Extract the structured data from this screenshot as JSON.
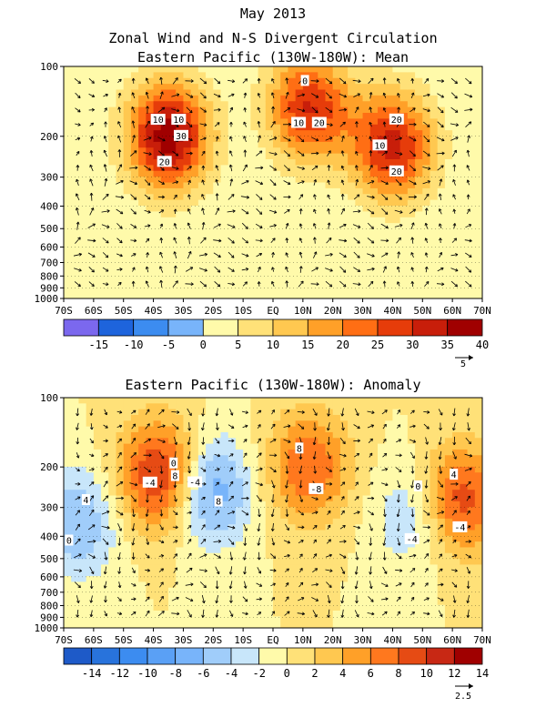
{
  "header": {
    "date_title": "May 2013",
    "main_title": "Zonal Wind and N-S Divergent Circulation"
  },
  "arrow_vector": {
    "reference_magnitudes": [
      "5",
      "2.5"
    ]
  },
  "chart_data": [
    {
      "type": "heatmap",
      "title": "Eastern Pacific (130W-180W): Mean",
      "x_ticks": [
        "70S",
        "60S",
        "50S",
        "40S",
        "30S",
        "20S",
        "10S",
        "EQ",
        "10N",
        "20N",
        "30N",
        "40N",
        "50N",
        "60N",
        "70N"
      ],
      "y_ticks": [
        "100",
        "200",
        "300",
        "400",
        "500",
        "600",
        "700",
        "800",
        "900",
        "1000"
      ],
      "y_scale": "log-pressure",
      "colorbar": {
        "labels": [
          "-15",
          "-10",
          "-5",
          "0",
          "5",
          "10",
          "15",
          "20",
          "25",
          "30",
          "35",
          "40"
        ],
        "colors": [
          "#7b68ee",
          "#1e64dc",
          "#3c8cf0",
          "#78b4fa",
          "#fffaaa",
          "#ffe178",
          "#ffc850",
          "#ffa028",
          "#ff6e14",
          "#e63c0a",
          "#c81e0a",
          "#a00000"
        ]
      },
      "contour_labels": [
        "30",
        "20",
        "20",
        "20",
        "10",
        "10",
        "10",
        "0",
        "20",
        "10"
      ],
      "centers": [
        {
          "lat": -35,
          "p": 200,
          "value": 38
        },
        {
          "lat": 12,
          "p": 150,
          "value": 30
        },
        {
          "lat": 40,
          "p": 220,
          "value": 32
        }
      ],
      "overlay": "meridional/vertical divergent wind vectors"
    },
    {
      "type": "heatmap",
      "title": "Eastern Pacific (130W-180W): Anomaly",
      "x_ticks": [
        "70S",
        "60S",
        "50S",
        "40S",
        "30S",
        "20S",
        "10S",
        "EQ",
        "10N",
        "20N",
        "30N",
        "40N",
        "50N",
        "60N",
        "70N"
      ],
      "y_ticks": [
        "100",
        "200",
        "300",
        "400",
        "500",
        "600",
        "700",
        "800",
        "900",
        "1000"
      ],
      "y_scale": "log-pressure",
      "colorbar": {
        "labels": [
          "-14",
          "-12",
          "-10",
          "-8",
          "-6",
          "-4",
          "-2",
          "0",
          "2",
          "4",
          "6",
          "8",
          "10",
          "12",
          "14"
        ],
        "colors": [
          "#1e5ac8",
          "#2873dc",
          "#3c8cf0",
          "#5aa0f5",
          "#78b4fa",
          "#a0cdfa",
          "#c8e6fa",
          "#fffaaa",
          "#ffe178",
          "#ffc850",
          "#ffa028",
          "#ff781e",
          "#e64b14",
          "#c82814",
          "#a00000"
        ]
      },
      "contour_labels": [
        "8",
        "8",
        "-8",
        "-4",
        "-4",
        "0",
        "-4",
        "-4",
        "8",
        "4",
        "0",
        "4",
        "0"
      ],
      "centers": [
        {
          "lat": -37,
          "p": 220,
          "value": 12
        },
        {
          "lat": -22,
          "p": 250,
          "value": -9
        },
        {
          "lat": 12,
          "p": 200,
          "value": 8
        },
        {
          "lat": 62,
          "p": 280,
          "value": 10
        },
        {
          "lat": 48,
          "p": 320,
          "value": -5
        },
        {
          "lat": -65,
          "p": 350,
          "value": -6
        }
      ],
      "overlay": "meridional/vertical divergent wind vector anomalies"
    }
  ]
}
